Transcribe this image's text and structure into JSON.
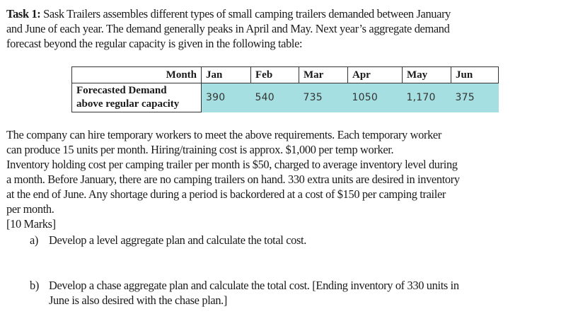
{
  "intro": {
    "task_label": "Task 1:",
    "lines": [
      " Sask Trailers assembles different types of small camping trailers demanded between January",
      "and June of each year. The demand generally peaks in April and May. Next year’s aggregate demand",
      "forecast beyond the regular capacity is given in the following table:"
    ]
  },
  "table": {
    "header_label": "Month",
    "row_label_line1": "Forecasted Demand",
    "row_label_line2": "above regular capacity",
    "months": [
      "Jan",
      "Feb",
      "Mar",
      "Apr",
      "May",
      "Jun"
    ],
    "values": [
      "390",
      "540",
      "735",
      "1050",
      "1,170",
      "375"
    ],
    "highlight_color": "#a6dfe1"
  },
  "body": {
    "lines": [
      "The company can hire temporary workers to meet the above requirements. Each temporary worker",
      "can produce 15 units per month. Hiring/training cost is approx. $1,000 per temp worker.",
      "Inventory holding cost per camping trailer per month is $50, charged to average inventory level during",
      "a month.  Before January, there are no camping trailers on hand. 330 extra units are desired in inventory",
      "at the end of June. Any shortage during a period is backordered at a cost of $150 per camping trailer",
      "per month.",
      "[10 Marks]"
    ]
  },
  "questions": [
    {
      "marker": "a)",
      "lines": [
        "Develop a level aggregate plan and calculate the total cost."
      ]
    },
    {
      "marker": "b)",
      "lines": [
        "Develop a chase aggregate plan and calculate the total cost. [Ending inventory of 330 units in",
        "June is also desired with the chase plan.]"
      ]
    }
  ]
}
